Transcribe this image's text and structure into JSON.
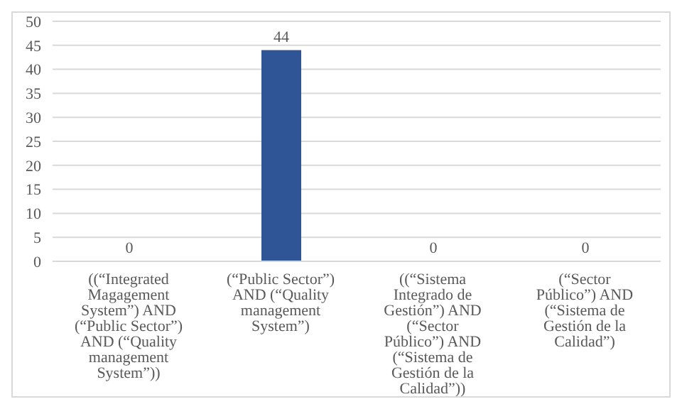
{
  "chart_data": {
    "type": "bar",
    "categories": [
      "((“Integrated Magagement System”) AND (“Public Sector”) AND (“Quality management System”))",
      "(“Public Sector”) AND (“Quality management System”)",
      "((“Sistema Integrado de Gestión”) AND (“Sector Público”) AND (“Sistema de Gestión de la Calidad”))",
      "(“Sector Público”) AND (“Sistema de Gestión de la Calidad”)"
    ],
    "values": [
      0,
      44,
      0,
      0
    ],
    "color": "#2f5597",
    "ylim": [
      0,
      50
    ],
    "yticks": [
      0,
      5,
      10,
      15,
      20,
      25,
      30,
      35,
      40,
      45,
      50
    ],
    "grid": "y",
    "data_labels": true,
    "legend": false
  }
}
